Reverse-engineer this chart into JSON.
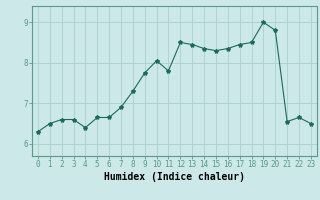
{
  "x": [
    0,
    1,
    2,
    3,
    4,
    5,
    6,
    7,
    8,
    9,
    10,
    11,
    12,
    13,
    14,
    15,
    16,
    17,
    18,
    19,
    20,
    21,
    22,
    23
  ],
  "y": [
    6.3,
    6.5,
    6.6,
    6.6,
    6.4,
    6.65,
    6.65,
    6.9,
    7.3,
    7.75,
    8.05,
    7.8,
    8.5,
    8.45,
    8.35,
    8.3,
    8.35,
    8.45,
    8.5,
    9.0,
    8.8,
    6.55,
    6.65,
    6.5
  ],
  "line_color": "#1a6b5a",
  "marker": "*",
  "marker_size": 3,
  "bg_color": "#cce8e8",
  "grid_color": "#aad0d0",
  "xlabel": "Humidex (Indice chaleur)",
  "xlim": [
    -0.5,
    23.5
  ],
  "ylim": [
    5.7,
    9.4
  ],
  "yticks": [
    6,
    7,
    8,
    9
  ],
  "xticks": [
    0,
    1,
    2,
    3,
    4,
    5,
    6,
    7,
    8,
    9,
    10,
    11,
    12,
    13,
    14,
    15,
    16,
    17,
    18,
    19,
    20,
    21,
    22,
    23
  ],
  "tick_fontsize": 5.5,
  "xlabel_fontsize": 7,
  "spine_color": "#5a9a8a"
}
